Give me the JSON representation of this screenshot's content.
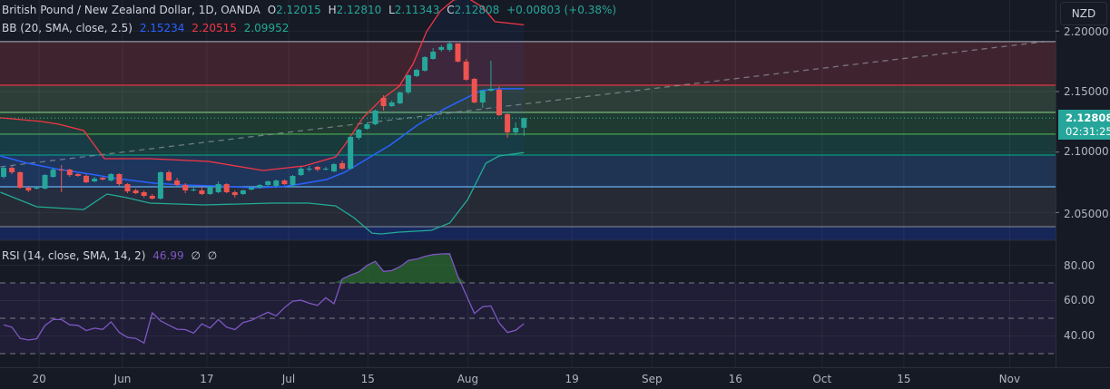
{
  "header": {
    "symbol": "British Pound / New Zealand Dollar, 1D, OANDA",
    "o_label": "O",
    "o": "2.12015",
    "h_label": "H",
    "h": "2.12810",
    "l_label": "L",
    "l": "2.11343",
    "c_label": "C",
    "c": "2.12808",
    "change": "+0.00803 (+0.38%)"
  },
  "bb_legend": {
    "label": "BB (20, SMA, close, 2.5)",
    "basis": "2.15234",
    "upper": "2.20515",
    "lower": "2.09952"
  },
  "rsi_legend": {
    "label": "RSI (14, close, SMA, 14, 2)",
    "value": "46.99",
    "v2": "∅",
    "v3": "∅"
  },
  "axis": {
    "currency": "NZD",
    "price_ticks": [
      "2.20000",
      "2.15000",
      "2.10000",
      "2.05000"
    ],
    "rsi_ticks": [
      "80.00",
      "60.00",
      "40.00"
    ],
    "last_price": "2.12808",
    "countdown": "02:31:25"
  },
  "colors": {
    "up": "#26a69a",
    "down": "#ef5350",
    "bb_basis": "#2962ff",
    "bb_upper": "#f23645",
    "bb_lower": "#22ab94",
    "rsi": "#7e57c2"
  },
  "chart_data": {
    "type": "candlestick",
    "price_range": [
      2.027,
      2.227
    ],
    "candles_ohlc": [
      [
        2.0795,
        2.0885,
        2.078,
        2.087
      ],
      [
        2.087,
        2.0885,
        2.0818,
        2.0833
      ],
      [
        2.0833,
        2.084,
        2.0698,
        2.0705
      ],
      [
        2.0705,
        2.072,
        2.0668,
        2.0683
      ],
      [
        2.0698,
        2.072,
        2.069,
        2.0705
      ],
      [
        2.0698,
        2.0818,
        2.069,
        2.081
      ],
      [
        2.0795,
        2.087,
        2.0788,
        2.0855
      ],
      [
        2.0855,
        2.0893,
        2.0668,
        2.0848
      ],
      [
        2.0855,
        2.0863,
        2.0795,
        2.081
      ],
      [
        2.0818,
        2.0825,
        2.0795,
        2.0803
      ],
      [
        2.0803,
        2.0818,
        2.0743,
        2.075
      ],
      [
        2.0758,
        2.0795,
        2.075,
        2.078
      ],
      [
        2.0788,
        2.0795,
        2.0765,
        2.0773
      ],
      [
        2.0765,
        2.0825,
        2.0758,
        2.0818
      ],
      [
        2.0818,
        2.0825,
        2.072,
        2.0735
      ],
      [
        2.0735,
        2.0743,
        2.066,
        2.0675
      ],
      [
        2.0683,
        2.0698,
        2.0653,
        2.066
      ],
      [
        2.0668,
        2.0683,
        2.0623,
        2.0638
      ],
      [
        2.0638,
        2.0653,
        2.0608,
        2.0615
      ],
      [
        2.0615,
        2.084,
        2.0608,
        2.0833
      ],
      [
        2.0833,
        2.0848,
        2.0758,
        2.0765
      ],
      [
        2.0765,
        2.0788,
        2.072,
        2.0728
      ],
      [
        2.0728,
        2.0743,
        2.066,
        2.0683
      ],
      [
        2.0683,
        2.0713,
        2.0675,
        2.069
      ],
      [
        2.0683,
        2.0713,
        2.0645,
        2.0653
      ],
      [
        2.0653,
        2.072,
        2.0645,
        2.0713
      ],
      [
        2.0668,
        2.0758,
        2.066,
        2.0735
      ],
      [
        2.0735,
        2.0743,
        2.066,
        2.0668
      ],
      [
        2.0668,
        2.0683,
        2.0623,
        2.0645
      ],
      [
        2.0653,
        2.069,
        2.0645,
        2.0683
      ],
      [
        2.069,
        2.072,
        2.0683,
        2.0705
      ],
      [
        2.0705,
        2.0735,
        2.0698,
        2.0728
      ],
      [
        2.0728,
        2.0765,
        2.072,
        2.0758
      ],
      [
        2.072,
        2.0773,
        2.0705,
        2.0765
      ],
      [
        2.0765,
        2.0773,
        2.0728,
        2.0735
      ],
      [
        2.0728,
        2.081,
        2.0713,
        2.0803
      ],
      [
        2.081,
        2.0878,
        2.0803,
        2.0863
      ],
      [
        2.0855,
        2.0885,
        2.084,
        2.0863
      ],
      [
        2.0878,
        2.0885,
        2.084,
        2.0855
      ],
      [
        2.0863,
        2.0878,
        2.0848,
        2.0863
      ],
      [
        2.084,
        2.0908,
        2.0833,
        2.09
      ],
      [
        2.0908,
        2.093,
        2.0855,
        2.0863
      ],
      [
        2.0863,
        2.1133,
        2.0855,
        2.1125
      ],
      [
        2.1118,
        2.1193,
        2.1103,
        2.1185
      ],
      [
        2.1193,
        2.1245,
        2.1185,
        2.123
      ],
      [
        2.123,
        2.135,
        2.1223,
        2.1343
      ],
      [
        2.1448,
        2.147,
        2.1343,
        2.138
      ],
      [
        2.138,
        2.1425,
        2.1373,
        2.141
      ],
      [
        2.1403,
        2.15,
        2.1395,
        2.1493
      ],
      [
        2.1493,
        2.1643,
        2.1478,
        2.1635
      ],
      [
        2.1628,
        2.1688,
        2.162,
        2.168
      ],
      [
        2.1673,
        2.1793,
        2.1665,
        2.1785
      ],
      [
        2.177,
        2.186,
        2.1763,
        2.183
      ],
      [
        2.1845,
        2.1883,
        2.183,
        2.1868
      ],
      [
        2.1845,
        2.192,
        2.183,
        2.1898
      ],
      [
        2.1898,
        2.1898,
        2.174,
        2.1748
      ],
      [
        2.1748,
        2.177,
        2.159,
        2.1598
      ],
      [
        2.1605,
        2.1613,
        2.1403,
        2.141
      ],
      [
        2.141,
        2.1515,
        2.1365,
        2.1508
      ],
      [
        2.1508,
        2.1755,
        2.15,
        2.1523
      ],
      [
        2.1515,
        2.1545,
        2.1298,
        2.1305
      ],
      [
        2.1313,
        2.132,
        2.1118,
        2.1163
      ],
      [
        2.1163,
        2.1245,
        2.114,
        2.12
      ],
      [
        2.12015,
        2.1281,
        2.11343,
        2.12808
      ]
    ],
    "bb_upper": [
      [
        -0.4,
        2.1283
      ],
      [
        4.5,
        2.1253
      ],
      [
        6.7,
        2.123
      ],
      [
        9.7,
        2.1178
      ],
      [
        12.2,
        2.0945
      ],
      [
        17.7,
        2.0945
      ],
      [
        24.8,
        2.0923
      ],
      [
        31.4,
        2.0848
      ],
      [
        36.4,
        2.0885
      ],
      [
        40.2,
        2.096
      ],
      [
        41.3,
        2.1058
      ],
      [
        43.5,
        2.1283
      ],
      [
        45.7,
        2.1433
      ],
      [
        47.9,
        2.1545
      ],
      [
        49.6,
        2.1733
      ],
      [
        51.2,
        2.1995
      ],
      [
        52.9,
        2.2168
      ],
      [
        54.5,
        2.2258
      ],
      [
        56.2,
        2.2273
      ],
      [
        58,
        2.2198
      ],
      [
        59.5,
        2.2078
      ],
      [
        63,
        2.20515
      ]
    ],
    "bb_basis": [
      [
        -0.4,
        2.0968
      ],
      [
        2.9,
        2.0908
      ],
      [
        6.2,
        2.0863
      ],
      [
        10.5,
        2.0818
      ],
      [
        13.8,
        2.078
      ],
      [
        18.2,
        2.0743
      ],
      [
        21.5,
        2.0728
      ],
      [
        25.9,
        2.072
      ],
      [
        30.3,
        2.0705
      ],
      [
        33.6,
        2.0713
      ],
      [
        35.8,
        2.0735
      ],
      [
        39.1,
        2.0773
      ],
      [
        41.3,
        2.0833
      ],
      [
        43.5,
        2.0923
      ],
      [
        46.8,
        2.1058
      ],
      [
        50.1,
        2.1223
      ],
      [
        53.4,
        2.1358
      ],
      [
        55.6,
        2.1433
      ],
      [
        57.8,
        2.1508
      ],
      [
        60,
        2.1523
      ],
      [
        63,
        2.15234
      ]
    ],
    "bb_lower": [
      [
        -0.4,
        2.0668
      ],
      [
        4,
        2.0548
      ],
      [
        9.7,
        2.0525
      ],
      [
        12.5,
        2.0653
      ],
      [
        14.9,
        2.0623
      ],
      [
        17.7,
        2.0578
      ],
      [
        24.3,
        2.0563
      ],
      [
        32.5,
        2.0578
      ],
      [
        36.9,
        2.0578
      ],
      [
        40.2,
        2.0555
      ],
      [
        42.4,
        2.0458
      ],
      [
        44.6,
        2.033
      ],
      [
        45.7,
        2.0323
      ],
      [
        47.9,
        2.0338
      ],
      [
        51.8,
        2.0353
      ],
      [
        54,
        2.0413
      ],
      [
        56.2,
        2.0608
      ],
      [
        58.4,
        2.0908
      ],
      [
        60,
        2.0968
      ],
      [
        63,
        2.09952
      ]
    ],
    "fib_levels": [
      2.1913,
      2.1553,
      2.1328,
      2.1148,
      2.0975,
      2.0713,
      2.0383
    ],
    "fib_zone_colors": [
      "#3f2430",
      "#2d3d38",
      "#1f3a30",
      "#183a3b",
      "#1f3452",
      "#262a35",
      "#172658"
    ],
    "fib_line_colors": [
      "#9598a1",
      "#f23645",
      "#81c784",
      "#4caf50",
      "#089981",
      "#64b5f6",
      "#787b86"
    ],
    "trendline": [
      [
        -0.4,
        2.0878
      ],
      [
        126,
        2.1913
      ]
    ],
    "rsi": [
      46.3,
      45.0,
      38.6,
      37.7,
      38.4,
      45.9,
      49.3,
      49.3,
      46.3,
      46.0,
      43.0,
      44.4,
      43.7,
      48.0,
      42.0,
      39.2,
      38.6,
      36.0,
      53.1,
      48.5,
      46.1,
      43.8,
      43.6,
      41.6,
      46.8,
      44.5,
      49.3,
      45.0,
      43.6,
      47.6,
      48.8,
      51.2,
      53.4,
      51.4,
      56.0,
      59.7,
      60.2,
      58.5,
      57.3,
      61.6,
      58.2,
      72.2,
      74.4,
      76.2,
      79.9,
      82.2,
      76.5,
      77.0,
      79.2,
      82.7,
      83.5,
      85.0,
      86.0,
      86.4,
      86.5,
      73.6,
      63.3,
      52.7,
      56.5,
      57.0,
      47.4,
      42.0,
      43.2,
      46.99
    ],
    "rsi_bands": {
      "upper": 70,
      "middle": 50,
      "lower": 30
    },
    "rsi_range": [
      20,
      90
    ],
    "x_ticks": [
      {
        "label": "20",
        "bar": 4.3
      },
      {
        "label": "Jun",
        "bar": 14.4
      },
      {
        "label": "17",
        "bar": 24.6
      },
      {
        "label": "Jul",
        "bar": 34.5
      },
      {
        "label": "15",
        "bar": 44.1
      },
      {
        "label": "Aug",
        "bar": 56.2
      },
      {
        "label": "19",
        "bar": 68.8
      },
      {
        "label": "Sep",
        "bar": 78.5
      },
      {
        "label": "16",
        "bar": 88.6
      },
      {
        "label": "Oct",
        "bar": 99.1
      },
      {
        "label": "15",
        "bar": 109
      },
      {
        "label": "Nov",
        "bar": 121.8
      }
    ]
  }
}
